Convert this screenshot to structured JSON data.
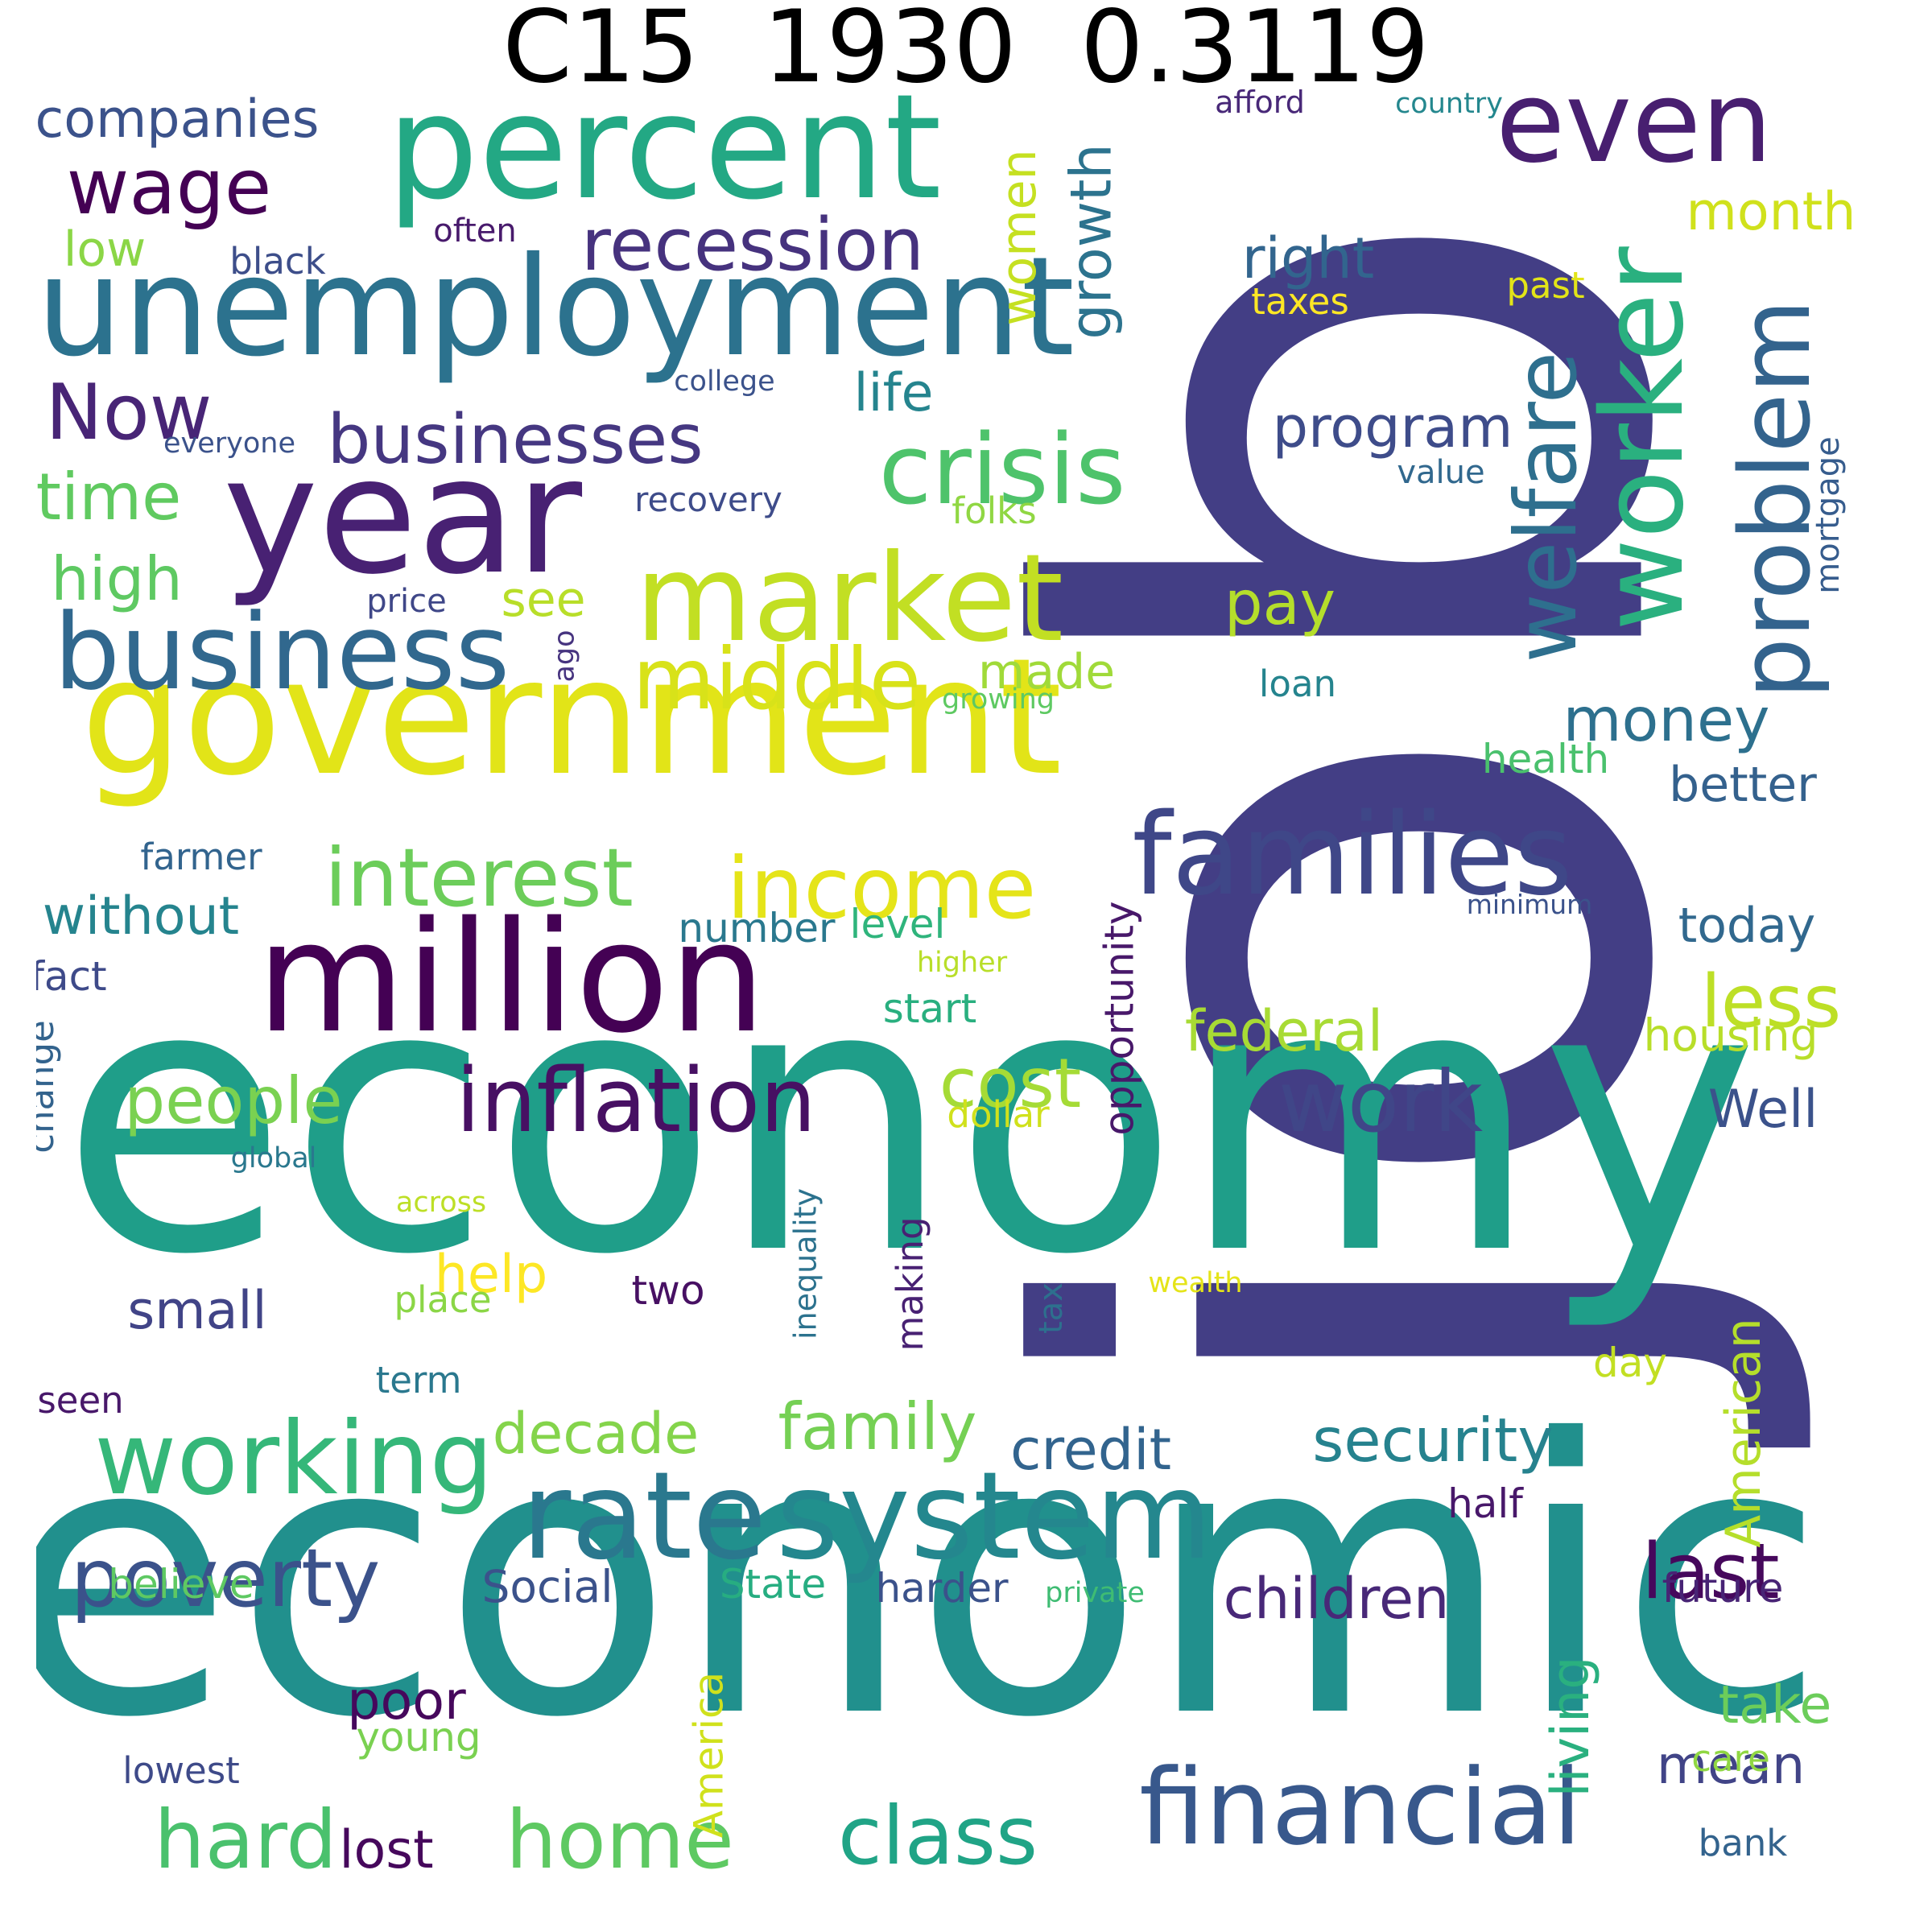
{
  "title": "C15  1930  0.3119",
  "words": [
    {
      "text": "job",
      "color": "#433e85"
    },
    {
      "text": "economy",
      "color": "#1f9e89"
    },
    {
      "text": "economic",
      "color": "#21908d"
    },
    {
      "text": "government",
      "color": "#e2e418"
    },
    {
      "text": "unemployment",
      "color": "#2c728e"
    },
    {
      "text": "percent",
      "color": "#23a884"
    },
    {
      "text": "year",
      "color": "#482173"
    },
    {
      "text": "million",
      "color": "#440154"
    },
    {
      "text": "rate",
      "color": "#2a788e"
    },
    {
      "text": "system",
      "color": "#24878e"
    },
    {
      "text": "market",
      "color": "#c2df23"
    },
    {
      "text": "business",
      "color": "#31688e"
    },
    {
      "text": "families",
      "color": "#3f4788"
    },
    {
      "text": "worker",
      "color": "#2ab07f"
    },
    {
      "text": "even",
      "color": "#481f70"
    },
    {
      "text": "financial",
      "color": "#38588c"
    },
    {
      "text": "crisis",
      "color": "#4ec36b"
    },
    {
      "text": "working",
      "color": "#35b779"
    },
    {
      "text": "inflation",
      "color": "#471063"
    },
    {
      "text": "problem",
      "color": "#33638d"
    },
    {
      "text": "middle",
      "color": "#d8e219"
    },
    {
      "text": "income",
      "color": "#e5e419"
    },
    {
      "text": "welfare",
      "color": "#2e6f8e"
    },
    {
      "text": "interest",
      "color": "#6ccd5a"
    },
    {
      "text": "work",
      "color": "#404688"
    },
    {
      "text": "poverty",
      "color": "#3b528b"
    },
    {
      "text": "class",
      "color": "#20a486"
    },
    {
      "text": "home",
      "color": "#5ec962"
    },
    {
      "text": "recession",
      "color": "#46327e"
    },
    {
      "text": "wage",
      "color": "#440154"
    },
    {
      "text": "Now",
      "color": "#482576"
    },
    {
      "text": "businesses",
      "color": "#453781"
    },
    {
      "text": "last",
      "color": "#46085c"
    },
    {
      "text": "hard",
      "color": "#4ac16d"
    },
    {
      "text": "security",
      "color": "#26828e"
    },
    {
      "text": "people",
      "color": "#7ad151"
    },
    {
      "text": "cost",
      "color": "#a5db36"
    },
    {
      "text": "family",
      "color": "#75d054"
    },
    {
      "text": "money",
      "color": "#2d708e"
    },
    {
      "text": "less",
      "color": "#bddf26"
    },
    {
      "text": "time",
      "color": "#60ca60"
    },
    {
      "text": "high",
      "color": "#5ec962"
    },
    {
      "text": "decade",
      "color": "#84d44b"
    },
    {
      "text": "credit",
      "color": "#32648e"
    },
    {
      "text": "children",
      "color": "#482878"
    },
    {
      "text": "program",
      "color": "#3e4c8a"
    },
    {
      "text": "right",
      "color": "#32658e"
    },
    {
      "text": "federal",
      "color": "#a8db34"
    },
    {
      "text": "pay",
      "color": "#b5de2b"
    },
    {
      "text": "growth",
      "color": "#2c738e"
    },
    {
      "text": "women",
      "color": "#c5e021"
    },
    {
      "text": "life",
      "color": "#25848e"
    },
    {
      "text": "companies",
      "color": "#3b528b"
    },
    {
      "text": "without",
      "color": "#25848e"
    },
    {
      "text": "small",
      "color": "#414487"
    },
    {
      "text": "today",
      "color": "#31688e"
    },
    {
      "text": "Well",
      "color": "#3b528b"
    },
    {
      "text": "better",
      "color": "#34618d"
    },
    {
      "text": "made",
      "color": "#a0da39"
    },
    {
      "text": "month",
      "color": "#d0e11c"
    },
    {
      "text": "see",
      "color": "#b8de29"
    },
    {
      "text": "low",
      "color": "#8bd646"
    },
    {
      "text": "living",
      "color": "#2ab07f"
    },
    {
      "text": "mean",
      "color": "#414487"
    },
    {
      "text": "take",
      "color": "#6ccd5a"
    },
    {
      "text": "poor",
      "color": "#46085c"
    },
    {
      "text": "lost",
      "color": "#46085c"
    },
    {
      "text": "American",
      "color": "#b5de2b"
    },
    {
      "text": "America",
      "color": "#d0e11c"
    },
    {
      "text": "opportunity",
      "color": "#48186a"
    },
    {
      "text": "help",
      "color": "#fde725"
    },
    {
      "text": "number",
      "color": "#2a788e"
    },
    {
      "text": "level",
      "color": "#2fb47c"
    },
    {
      "text": "start",
      "color": "#29af7f"
    },
    {
      "text": "fact",
      "color": "#3e4a89"
    },
    {
      "text": "change",
      "color": "#33638d"
    },
    {
      "text": "health",
      "color": "#4ac16d"
    },
    {
      "text": "housing",
      "color": "#b8de29"
    },
    {
      "text": "future",
      "color": "#482475"
    },
    {
      "text": "half",
      "color": "#48186a"
    },
    {
      "text": "Social",
      "color": "#3b528b"
    },
    {
      "text": "State",
      "color": "#27ad81"
    },
    {
      "text": "harder",
      "color": "#3b528b"
    },
    {
      "text": "believe",
      "color": "#5ec962"
    },
    {
      "text": "making",
      "color": "#482173"
    },
    {
      "text": "inequality",
      "color": "#2c728e"
    },
    {
      "text": "tax",
      "color": "#2d708e"
    },
    {
      "text": "two",
      "color": "#471063"
    },
    {
      "text": "place",
      "color": "#8bd646"
    },
    {
      "text": "term",
      "color": "#2a788e"
    },
    {
      "text": "seen",
      "color": "#48186a"
    },
    {
      "text": "young",
      "color": "#7ad151"
    },
    {
      "text": "lowest",
      "color": "#3e4a89"
    },
    {
      "text": "day",
      "color": "#c2df23"
    },
    {
      "text": "care",
      "color": "#90d743"
    },
    {
      "text": "bank",
      "color": "#33638d"
    },
    {
      "text": "dollar",
      "color": "#d0e11c"
    },
    {
      "text": "farmer",
      "color": "#32648e"
    },
    {
      "text": "loan",
      "color": "#25848e"
    },
    {
      "text": "price",
      "color": "#3f4788"
    },
    {
      "text": "ago",
      "color": "#46337f"
    },
    {
      "text": "recovery",
      "color": "#3e4c8a"
    },
    {
      "text": "folks",
      "color": "#90d743"
    },
    {
      "text": "past",
      "color": "#e2e418"
    },
    {
      "text": "taxes",
      "color": "#fde725"
    },
    {
      "text": "mortgage",
      "color": "#365c8d"
    },
    {
      "text": "value",
      "color": "#31688e"
    },
    {
      "text": "often",
      "color": "#481a6c"
    },
    {
      "text": "black",
      "color": "#3d4e8a"
    },
    {
      "text": "college",
      "color": "#3b528b"
    },
    {
      "text": "everyone",
      "color": "#3b528b"
    },
    {
      "text": "afford",
      "color": "#482878"
    },
    {
      "text": "country",
      "color": "#24878e"
    },
    {
      "text": "growing",
      "color": "#5ec962"
    },
    {
      "text": "minimum",
      "color": "#3b528b"
    },
    {
      "text": "higher",
      "color": "#b8de29"
    },
    {
      "text": "global",
      "color": "#2a788e"
    },
    {
      "text": "across",
      "color": "#bddf26"
    },
    {
      "text": "wealth",
      "color": "#e5e419"
    },
    {
      "text": "private",
      "color": "#3fbc73"
    }
  ]
}
